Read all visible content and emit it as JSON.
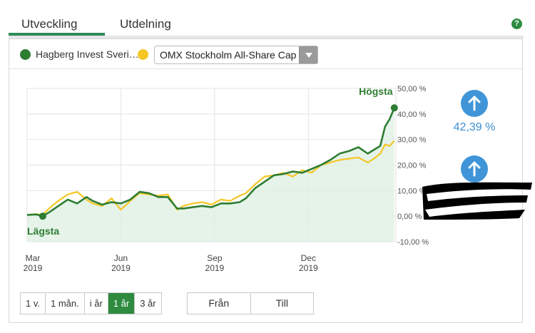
{
  "tabs": [
    {
      "label": "Utveckling",
      "active": true
    },
    {
      "label": "Utdelning",
      "active": false
    }
  ],
  "help_label": "?",
  "legend": {
    "series1": {
      "name": "Hagberg Invest Sveri…",
      "color": "#2e7d32"
    },
    "series2": {
      "name": "OMX Stockholm All-Share Cap",
      "color": "#f6c624"
    }
  },
  "changes": {
    "series1_value": "42,39 %",
    "arrow_icon": "arrow-up-icon",
    "button_color": "#3f95d8"
  },
  "period_buttons": [
    {
      "label": "1 v.",
      "active": false
    },
    {
      "label": "1 mån.",
      "active": false
    },
    {
      "label": "i år",
      "active": false
    },
    {
      "label": "1 år",
      "active": true
    },
    {
      "label": "3 år",
      "active": false
    }
  ],
  "range": {
    "from_label": "Från",
    "to_label": "Till"
  },
  "chart_data": {
    "type": "line",
    "y_tick_labels": [
      "50,00 %",
      "40,00 %",
      "30,00 %",
      "20,00 %",
      "10,00 %",
      "0,00 %",
      "-10,00 %"
    ],
    "y_ticks": [
      50,
      40,
      30,
      20,
      10,
      0,
      -10
    ],
    "ylim": [
      -10,
      50
    ],
    "x_ticks": [
      {
        "month": "Mar",
        "year": "2019",
        "t": 0
      },
      {
        "month": "Jun",
        "year": "2019",
        "t": 3
      },
      {
        "month": "Sep",
        "year": "2019",
        "t": 6
      },
      {
        "month": "Dec",
        "year": "2019",
        "t": 9
      }
    ],
    "xlim": [
      0,
      11.8
    ],
    "grid": true,
    "annotations": {
      "high_label": "Högsta",
      "low_label": "Lägsta"
    },
    "series": [
      {
        "name": "Hagberg Invest Sveri…",
        "color": "#2e7d32",
        "t": [
          0,
          0.3,
          0.5,
          0.7,
          1.0,
          1.3,
          1.6,
          1.9,
          2.1,
          2.4,
          2.7,
          3.0,
          3.3,
          3.6,
          3.9,
          4.2,
          4.5,
          4.8,
          5.0,
          5.3,
          5.6,
          5.9,
          6.2,
          6.5,
          6.8,
          7.0,
          7.3,
          7.6,
          7.9,
          8.2,
          8.5,
          8.8,
          9.1,
          9.4,
          9.7,
          10.0,
          10.3,
          10.6,
          10.9,
          11.1,
          11.3,
          11.45,
          11.6,
          11.75
        ],
        "values": [
          0.5,
          0.7,
          0,
          1.5,
          4,
          6.5,
          5,
          7.5,
          6,
          4.5,
          5.5,
          5,
          6.5,
          9.5,
          9,
          7.5,
          7.5,
          3,
          3,
          3.5,
          4,
          3.5,
          5,
          5,
          5.5,
          7,
          11,
          13.5,
          16,
          16.5,
          17.5,
          17,
          18.5,
          20,
          22,
          24.5,
          25.5,
          27,
          24.5,
          26,
          27.5,
          35,
          38,
          42.4
        ]
      },
      {
        "name": "OMX Stockholm All-Share Cap",
        "color": "#f6c624",
        "t": [
          0,
          0.3,
          0.5,
          0.7,
          1.0,
          1.3,
          1.6,
          1.9,
          2.1,
          2.4,
          2.7,
          3.0,
          3.3,
          3.6,
          3.9,
          4.2,
          4.5,
          4.8,
          5.0,
          5.3,
          5.6,
          5.9,
          6.2,
          6.5,
          6.8,
          7.0,
          7.3,
          7.6,
          7.9,
          8.2,
          8.5,
          8.8,
          9.1,
          9.4,
          9.7,
          10.0,
          10.3,
          10.6,
          10.9,
          11.1,
          11.3,
          11.45,
          11.6,
          11.75
        ],
        "values": [
          0.5,
          0.8,
          0.5,
          3,
          6,
          8.5,
          9.5,
          6.5,
          5,
          4,
          7,
          2.5,
          6,
          9,
          8.5,
          8,
          8.5,
          2.5,
          4,
          5,
          5.5,
          4.5,
          6.5,
          6,
          8,
          9,
          12.5,
          15.5,
          16,
          17,
          15.5,
          18,
          17,
          20,
          21,
          22,
          22.5,
          23,
          21,
          22.5,
          24.5,
          28,
          27.5,
          29.5
        ]
      }
    ]
  }
}
